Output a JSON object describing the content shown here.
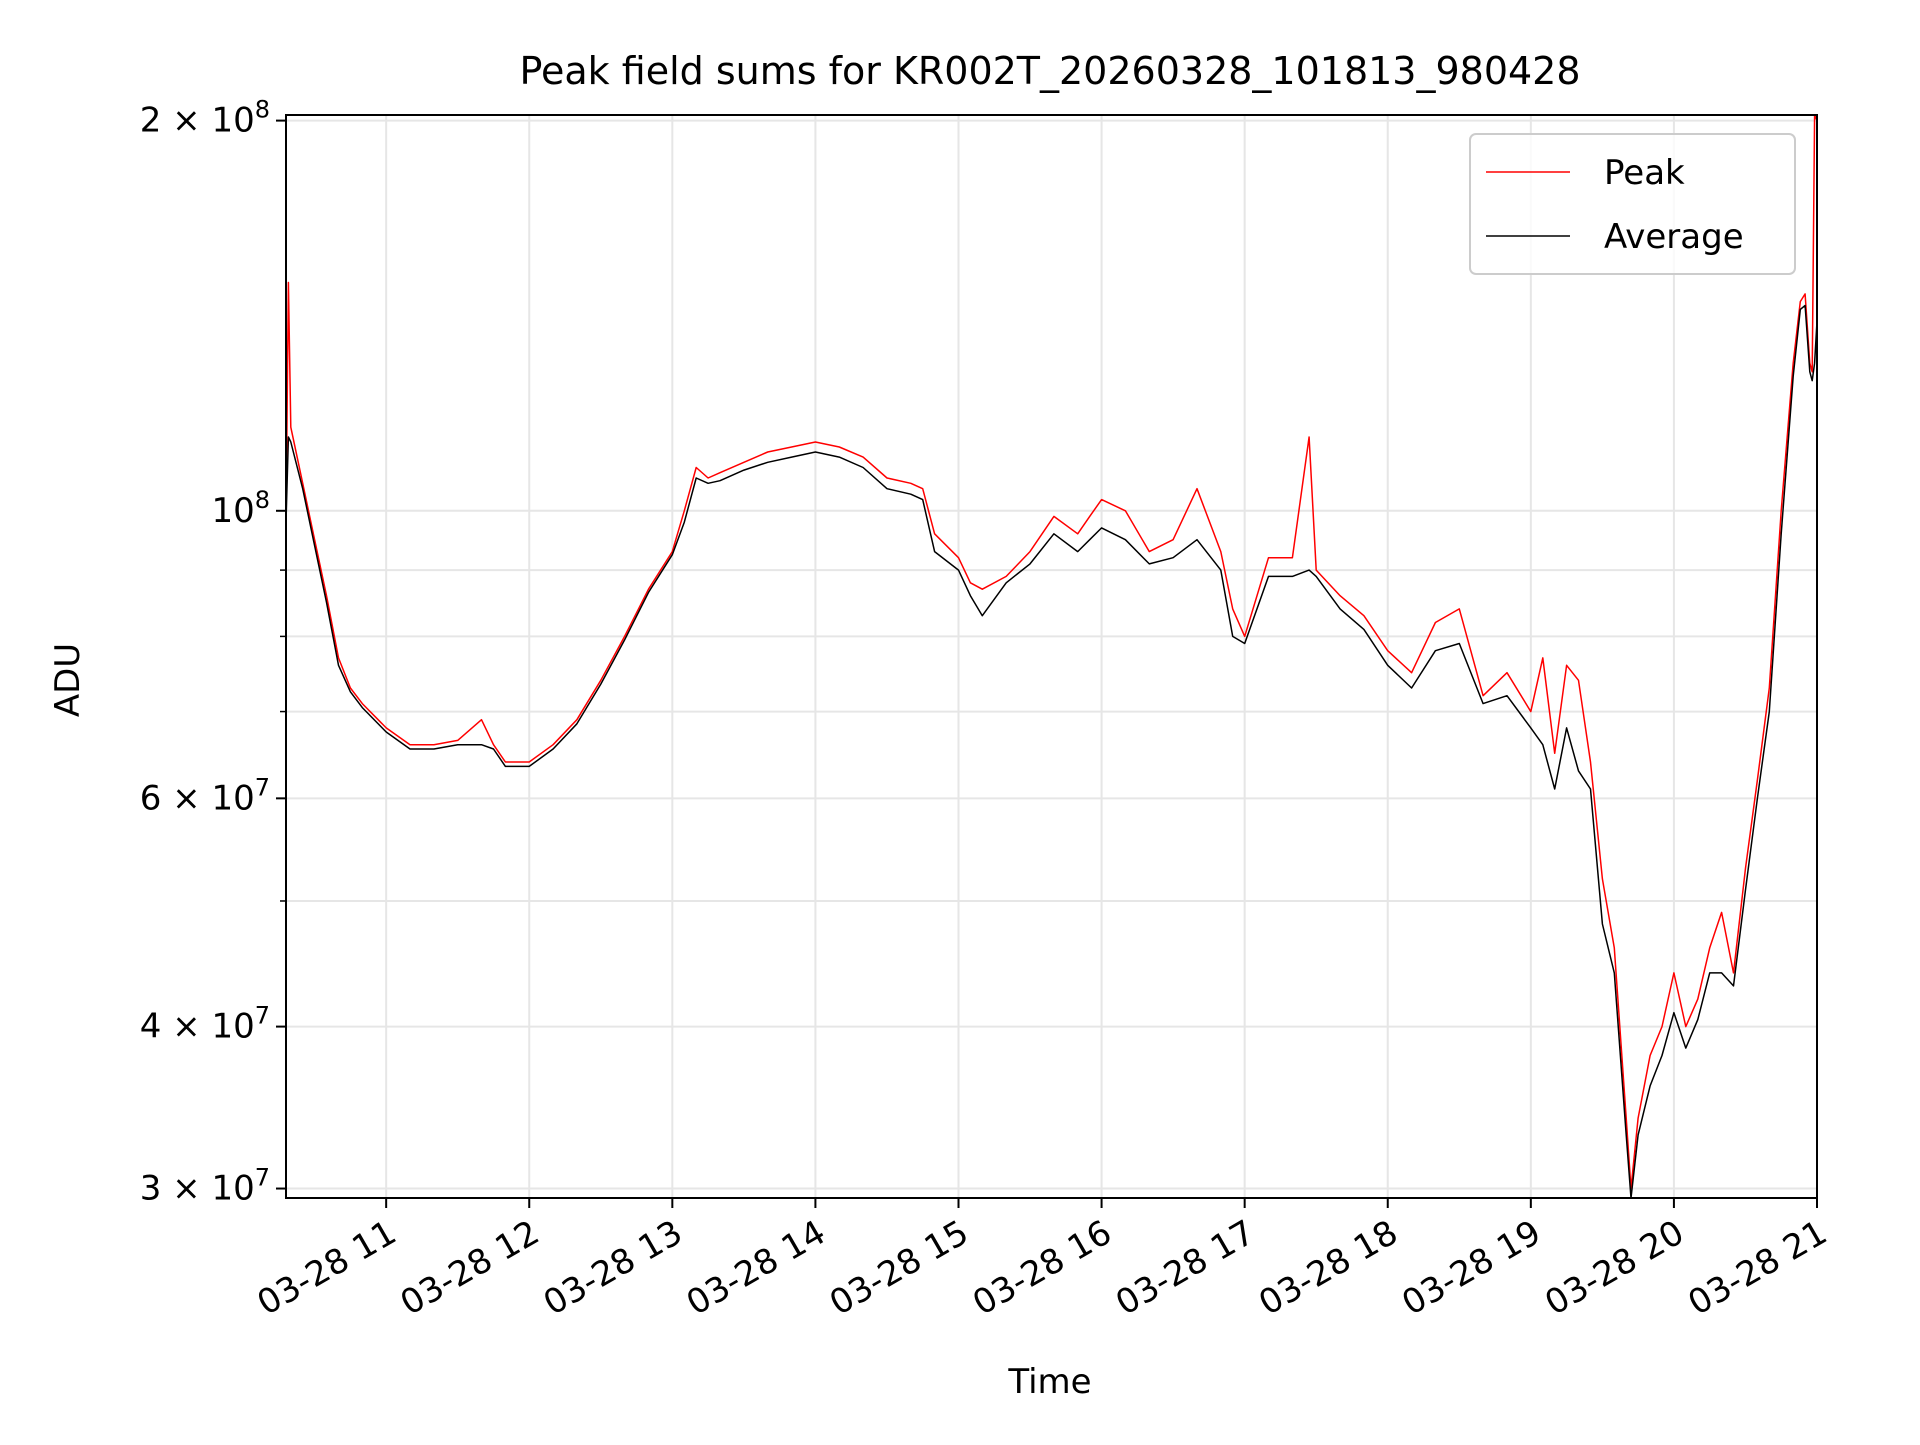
{
  "chart_data": {
    "type": "line",
    "title": "Peak field sums for KR002T_20260328_101813_980428",
    "xlabel": "Time",
    "ylabel": "ADU",
    "y_scale": "log",
    "ylim": [
      29500000,
      202000000
    ],
    "xlim": [
      "2026-03-28 10:18",
      "2026-03-28 21:00"
    ],
    "grid": true,
    "legend": {
      "placement": "upper right"
    },
    "x_ticks": [
      {
        "value": "2026-03-28 11:00",
        "label": "03-28 11"
      },
      {
        "value": "2026-03-28 12:00",
        "label": "03-28 12"
      },
      {
        "value": "2026-03-28 13:00",
        "label": "03-28 13"
      },
      {
        "value": "2026-03-28 14:00",
        "label": "03-28 14"
      },
      {
        "value": "2026-03-28 15:00",
        "label": "03-28 15"
      },
      {
        "value": "2026-03-28 16:00",
        "label": "03-28 16"
      },
      {
        "value": "2026-03-28 17:00",
        "label": "03-28 17"
      },
      {
        "value": "2026-03-28 18:00",
        "label": "03-28 18"
      },
      {
        "value": "2026-03-28 19:00",
        "label": "03-28 19"
      },
      {
        "value": "2026-03-28 20:00",
        "label": "03-28 20"
      },
      {
        "value": "2026-03-28 21:00",
        "label": "03-28 21"
      }
    ],
    "y_major_ticks": [
      {
        "value": 30000000,
        "mantissa": "3",
        "exponent": "7"
      },
      {
        "value": 40000000,
        "mantissa": "4",
        "exponent": "7"
      },
      {
        "value": 60000000,
        "mantissa": "6",
        "exponent": "7"
      },
      {
        "value": 100000000,
        "mantissa": "",
        "exponent": "8"
      },
      {
        "value": 200000000,
        "mantissa": "2",
        "exponent": "8"
      }
    ],
    "y_minor_ticks": [
      50000000,
      70000000,
      80000000,
      90000000
    ],
    "series": [
      {
        "name": "Peak",
        "color": "#ff0000",
        "x": [
          "2026-03-28 10:18",
          "2026-03-28 10:19",
          "2026-03-28 10:20",
          "2026-03-28 10:25",
          "2026-03-28 10:30",
          "2026-03-28 10:35",
          "2026-03-28 10:40",
          "2026-03-28 10:45",
          "2026-03-28 10:50",
          "2026-03-28 11:00",
          "2026-03-28 11:10",
          "2026-03-28 11:20",
          "2026-03-28 11:30",
          "2026-03-28 11:40",
          "2026-03-28 11:45",
          "2026-03-28 11:50",
          "2026-03-28 12:00",
          "2026-03-28 12:10",
          "2026-03-28 12:20",
          "2026-03-28 12:30",
          "2026-03-28 12:40",
          "2026-03-28 12:50",
          "2026-03-28 13:00",
          "2026-03-28 13:05",
          "2026-03-28 13:10",
          "2026-03-28 13:15",
          "2026-03-28 13:20",
          "2026-03-28 13:30",
          "2026-03-28 13:40",
          "2026-03-28 13:50",
          "2026-03-28 14:00",
          "2026-03-28 14:10",
          "2026-03-28 14:20",
          "2026-03-28 14:30",
          "2026-03-28 14:40",
          "2026-03-28 14:45",
          "2026-03-28 14:50",
          "2026-03-28 15:00",
          "2026-03-28 15:05",
          "2026-03-28 15:10",
          "2026-03-28 15:20",
          "2026-03-28 15:30",
          "2026-03-28 15:40",
          "2026-03-28 15:50",
          "2026-03-28 15:55",
          "2026-03-28 16:00",
          "2026-03-28 16:10",
          "2026-03-28 16:20",
          "2026-03-28 16:30",
          "2026-03-28 16:40",
          "2026-03-28 16:50",
          "2026-03-28 16:55",
          "2026-03-28 17:00",
          "2026-03-28 17:10",
          "2026-03-28 17:20",
          "2026-03-28 17:27",
          "2026-03-28 17:30",
          "2026-03-28 17:40",
          "2026-03-28 17:50",
          "2026-03-28 18:00",
          "2026-03-28 18:10",
          "2026-03-28 18:20",
          "2026-03-28 18:30",
          "2026-03-28 18:40",
          "2026-03-28 18:50",
          "2026-03-28 19:00",
          "2026-03-28 19:05",
          "2026-03-28 19:10",
          "2026-03-28 19:15",
          "2026-03-28 19:20",
          "2026-03-28 19:25",
          "2026-03-28 19:30",
          "2026-03-28 19:35",
          "2026-03-28 19:40",
          "2026-03-28 19:42",
          "2026-03-28 19:45",
          "2026-03-28 19:50",
          "2026-03-28 19:55",
          "2026-03-28 20:00",
          "2026-03-28 20:05",
          "2026-03-28 20:10",
          "2026-03-28 20:15",
          "2026-03-28 20:20",
          "2026-03-28 20:25",
          "2026-03-28 20:30",
          "2026-03-28 20:35",
          "2026-03-28 20:40",
          "2026-03-28 20:45",
          "2026-03-28 20:50",
          "2026-03-28 20:53",
          "2026-03-28 20:55",
          "2026-03-28 20:57",
          "2026-03-28 20:58",
          "2026-03-28 20:59",
          "2026-03-28 21:00"
        ],
        "y": [
          98000000,
          150000000,
          116000000,
          105000000,
          95000000,
          86000000,
          77000000,
          73000000,
          71000000,
          68000000,
          66000000,
          66000000,
          66500000,
          69000000,
          66000000,
          64000000,
          64000000,
          66000000,
          69000000,
          74000000,
          80000000,
          87000000,
          93000000,
          100000000,
          108000000,
          106000000,
          107000000,
          109000000,
          111000000,
          112000000,
          113000000,
          112000000,
          110000000,
          106000000,
          105000000,
          104000000,
          96000000,
          92000000,
          88000000,
          87000000,
          89000000,
          93000000,
          99000000,
          96000000,
          99000000,
          102000000,
          100000000,
          93000000,
          95000000,
          104000000,
          93000000,
          84000000,
          80000000,
          92000000,
          92000000,
          114000000,
          90000000,
          86000000,
          83000000,
          78000000,
          75000000,
          82000000,
          84000000,
          72000000,
          75000000,
          70000000,
          77000000,
          65000000,
          76000000,
          74000000,
          64000000,
          52000000,
          46000000,
          34000000,
          30000000,
          34000000,
          38000000,
          40000000,
          44000000,
          40000000,
          42000000,
          46000000,
          49000000,
          44000000,
          53000000,
          62000000,
          73000000,
          100000000,
          130000000,
          145000000,
          147000000,
          130000000,
          128000000,
          202000000,
          200000000
        ]
      },
      {
        "name": "Average",
        "color": "#000000",
        "x": [
          "2026-03-28 10:18",
          "2026-03-28 10:19",
          "2026-03-28 10:20",
          "2026-03-28 10:25",
          "2026-03-28 10:30",
          "2026-03-28 10:35",
          "2026-03-28 10:40",
          "2026-03-28 10:45",
          "2026-03-28 10:50",
          "2026-03-28 11:00",
          "2026-03-28 11:10",
          "2026-03-28 11:20",
          "2026-03-28 11:30",
          "2026-03-28 11:40",
          "2026-03-28 11:45",
          "2026-03-28 11:50",
          "2026-03-28 12:00",
          "2026-03-28 12:10",
          "2026-03-28 12:20",
          "2026-03-28 12:30",
          "2026-03-28 12:40",
          "2026-03-28 12:50",
          "2026-03-28 13:00",
          "2026-03-28 13:05",
          "2026-03-28 13:10",
          "2026-03-28 13:15",
          "2026-03-28 13:20",
          "2026-03-28 13:30",
          "2026-03-28 13:40",
          "2026-03-28 13:50",
          "2026-03-28 14:00",
          "2026-03-28 14:10",
          "2026-03-28 14:20",
          "2026-03-28 14:30",
          "2026-03-28 14:40",
          "2026-03-28 14:45",
          "2026-03-28 14:50",
          "2026-03-28 15:00",
          "2026-03-28 15:05",
          "2026-03-28 15:10",
          "2026-03-28 15:20",
          "2026-03-28 15:30",
          "2026-03-28 15:40",
          "2026-03-28 15:50",
          "2026-03-28 15:55",
          "2026-03-28 16:00",
          "2026-03-28 16:10",
          "2026-03-28 16:20",
          "2026-03-28 16:30",
          "2026-03-28 16:40",
          "2026-03-28 16:50",
          "2026-03-28 16:55",
          "2026-03-28 17:00",
          "2026-03-28 17:10",
          "2026-03-28 17:20",
          "2026-03-28 17:27",
          "2026-03-28 17:30",
          "2026-03-28 17:40",
          "2026-03-28 17:50",
          "2026-03-28 18:00",
          "2026-03-28 18:10",
          "2026-03-28 18:20",
          "2026-03-28 18:30",
          "2026-03-28 18:40",
          "2026-03-28 18:50",
          "2026-03-28 19:00",
          "2026-03-28 19:05",
          "2026-03-28 19:10",
          "2026-03-28 19:15",
          "2026-03-28 19:20",
          "2026-03-28 19:25",
          "2026-03-28 19:30",
          "2026-03-28 19:35",
          "2026-03-28 19:40",
          "2026-03-28 19:42",
          "2026-03-28 19:45",
          "2026-03-28 19:50",
          "2026-03-28 19:55",
          "2026-03-28 20:00",
          "2026-03-28 20:05",
          "2026-03-28 20:10",
          "2026-03-28 20:15",
          "2026-03-28 20:20",
          "2026-03-28 20:25",
          "2026-03-28 20:30",
          "2026-03-28 20:35",
          "2026-03-28 20:40",
          "2026-03-28 20:45",
          "2026-03-28 20:50",
          "2026-03-28 20:53",
          "2026-03-28 20:55",
          "2026-03-28 20:57",
          "2026-03-28 20:58",
          "2026-03-28 20:59",
          "2026-03-28 21:00"
        ],
        "y": [
          98000000,
          114000000,
          113000000,
          104000000,
          94000000,
          85000000,
          76000000,
          72500000,
          70500000,
          67500000,
          65500000,
          65500000,
          66000000,
          66000000,
          65500000,
          63500000,
          63500000,
          65500000,
          68500000,
          73500000,
          79500000,
          86500000,
          92500000,
          98000000,
          106000000,
          105000000,
          105500000,
          107500000,
          109000000,
          110000000,
          111000000,
          110000000,
          108000000,
          104000000,
          103000000,
          102000000,
          93000000,
          90000000,
          86000000,
          83000000,
          88000000,
          91000000,
          96000000,
          93000000,
          95000000,
          97000000,
          95000000,
          91000000,
          92000000,
          95000000,
          90000000,
          80000000,
          79000000,
          89000000,
          89000000,
          90000000,
          89000000,
          84000000,
          81000000,
          76000000,
          73000000,
          78000000,
          79000000,
          71000000,
          72000000,
          68000000,
          66000000,
          61000000,
          68000000,
          63000000,
          61000000,
          48000000,
          44000000,
          33000000,
          29500000,
          33000000,
          36000000,
          38000000,
          41000000,
          38500000,
          40500000,
          44000000,
          44000000,
          43000000,
          51000000,
          60000000,
          70000000,
          96000000,
          127000000,
          143000000,
          144000000,
          128000000,
          126000000,
          130000000,
          140000000
        ]
      }
    ]
  }
}
